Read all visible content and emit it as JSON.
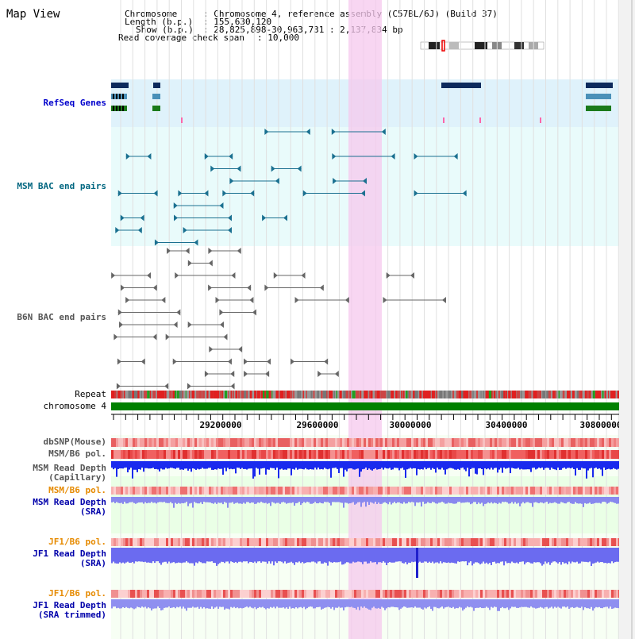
{
  "title": "Map View",
  "info": {
    "chromosome_key": "Chromosome",
    "chromosome_val": ": Chromosome 4, reference assembly (C57BL/6J) (Build 37)",
    "length_key": "Length (b.p.)",
    "length_val": ": 155,630,120",
    "show_key": "Show (b.p.)",
    "show_val": ": 28,825,898-30,963,731 : 2,137,834 bp",
    "coverage_key": "Read coverage check span",
    "coverage_val": ": 10,000"
  },
  "tracks": {
    "refseq": "RefSeq Genes",
    "msm_bac": "MSM BAC end pairs",
    "b6n_bac": "B6N BAC end pairs",
    "repeat": "Repeat",
    "chromosome": "chromosome 4",
    "dbsnp": "dbSNP(Mouse)",
    "msm_b6_pol": "MSM/B6 pol.",
    "msm_depth_cap_1": "MSM Read Depth",
    "msm_depth_cap_2": "(Capillary)",
    "msm_b6_pol_2": "MSM/B6 pol.",
    "msm_depth_sra_1": "MSM Read Depth",
    "msm_depth_sra_2": "(SRA)",
    "jf1_pol_1": "JF1/B6 pol.",
    "jf1_depth_1": "JF1 Read Depth",
    "jf1_depth_1b": "(SRA)",
    "jf1_pol_2": "JF1/B6 pol.",
    "jf1_depth_2": "JF1 Read Depth",
    "jf1_depth_2b": "(SRA trimmed)"
  },
  "axis": {
    "ticks": [
      "29200000",
      "29600000",
      "30000000",
      "30400000",
      "30800000"
    ]
  },
  "colors": {
    "refseq_label": "#0000cc",
    "msm_label": "#006680",
    "b6n_label": "#555555",
    "pol_label": "#e68a00",
    "depth_label": "#0000aa",
    "highlight": "#f5c8ee",
    "chromosome_bar": "#008000"
  }
}
